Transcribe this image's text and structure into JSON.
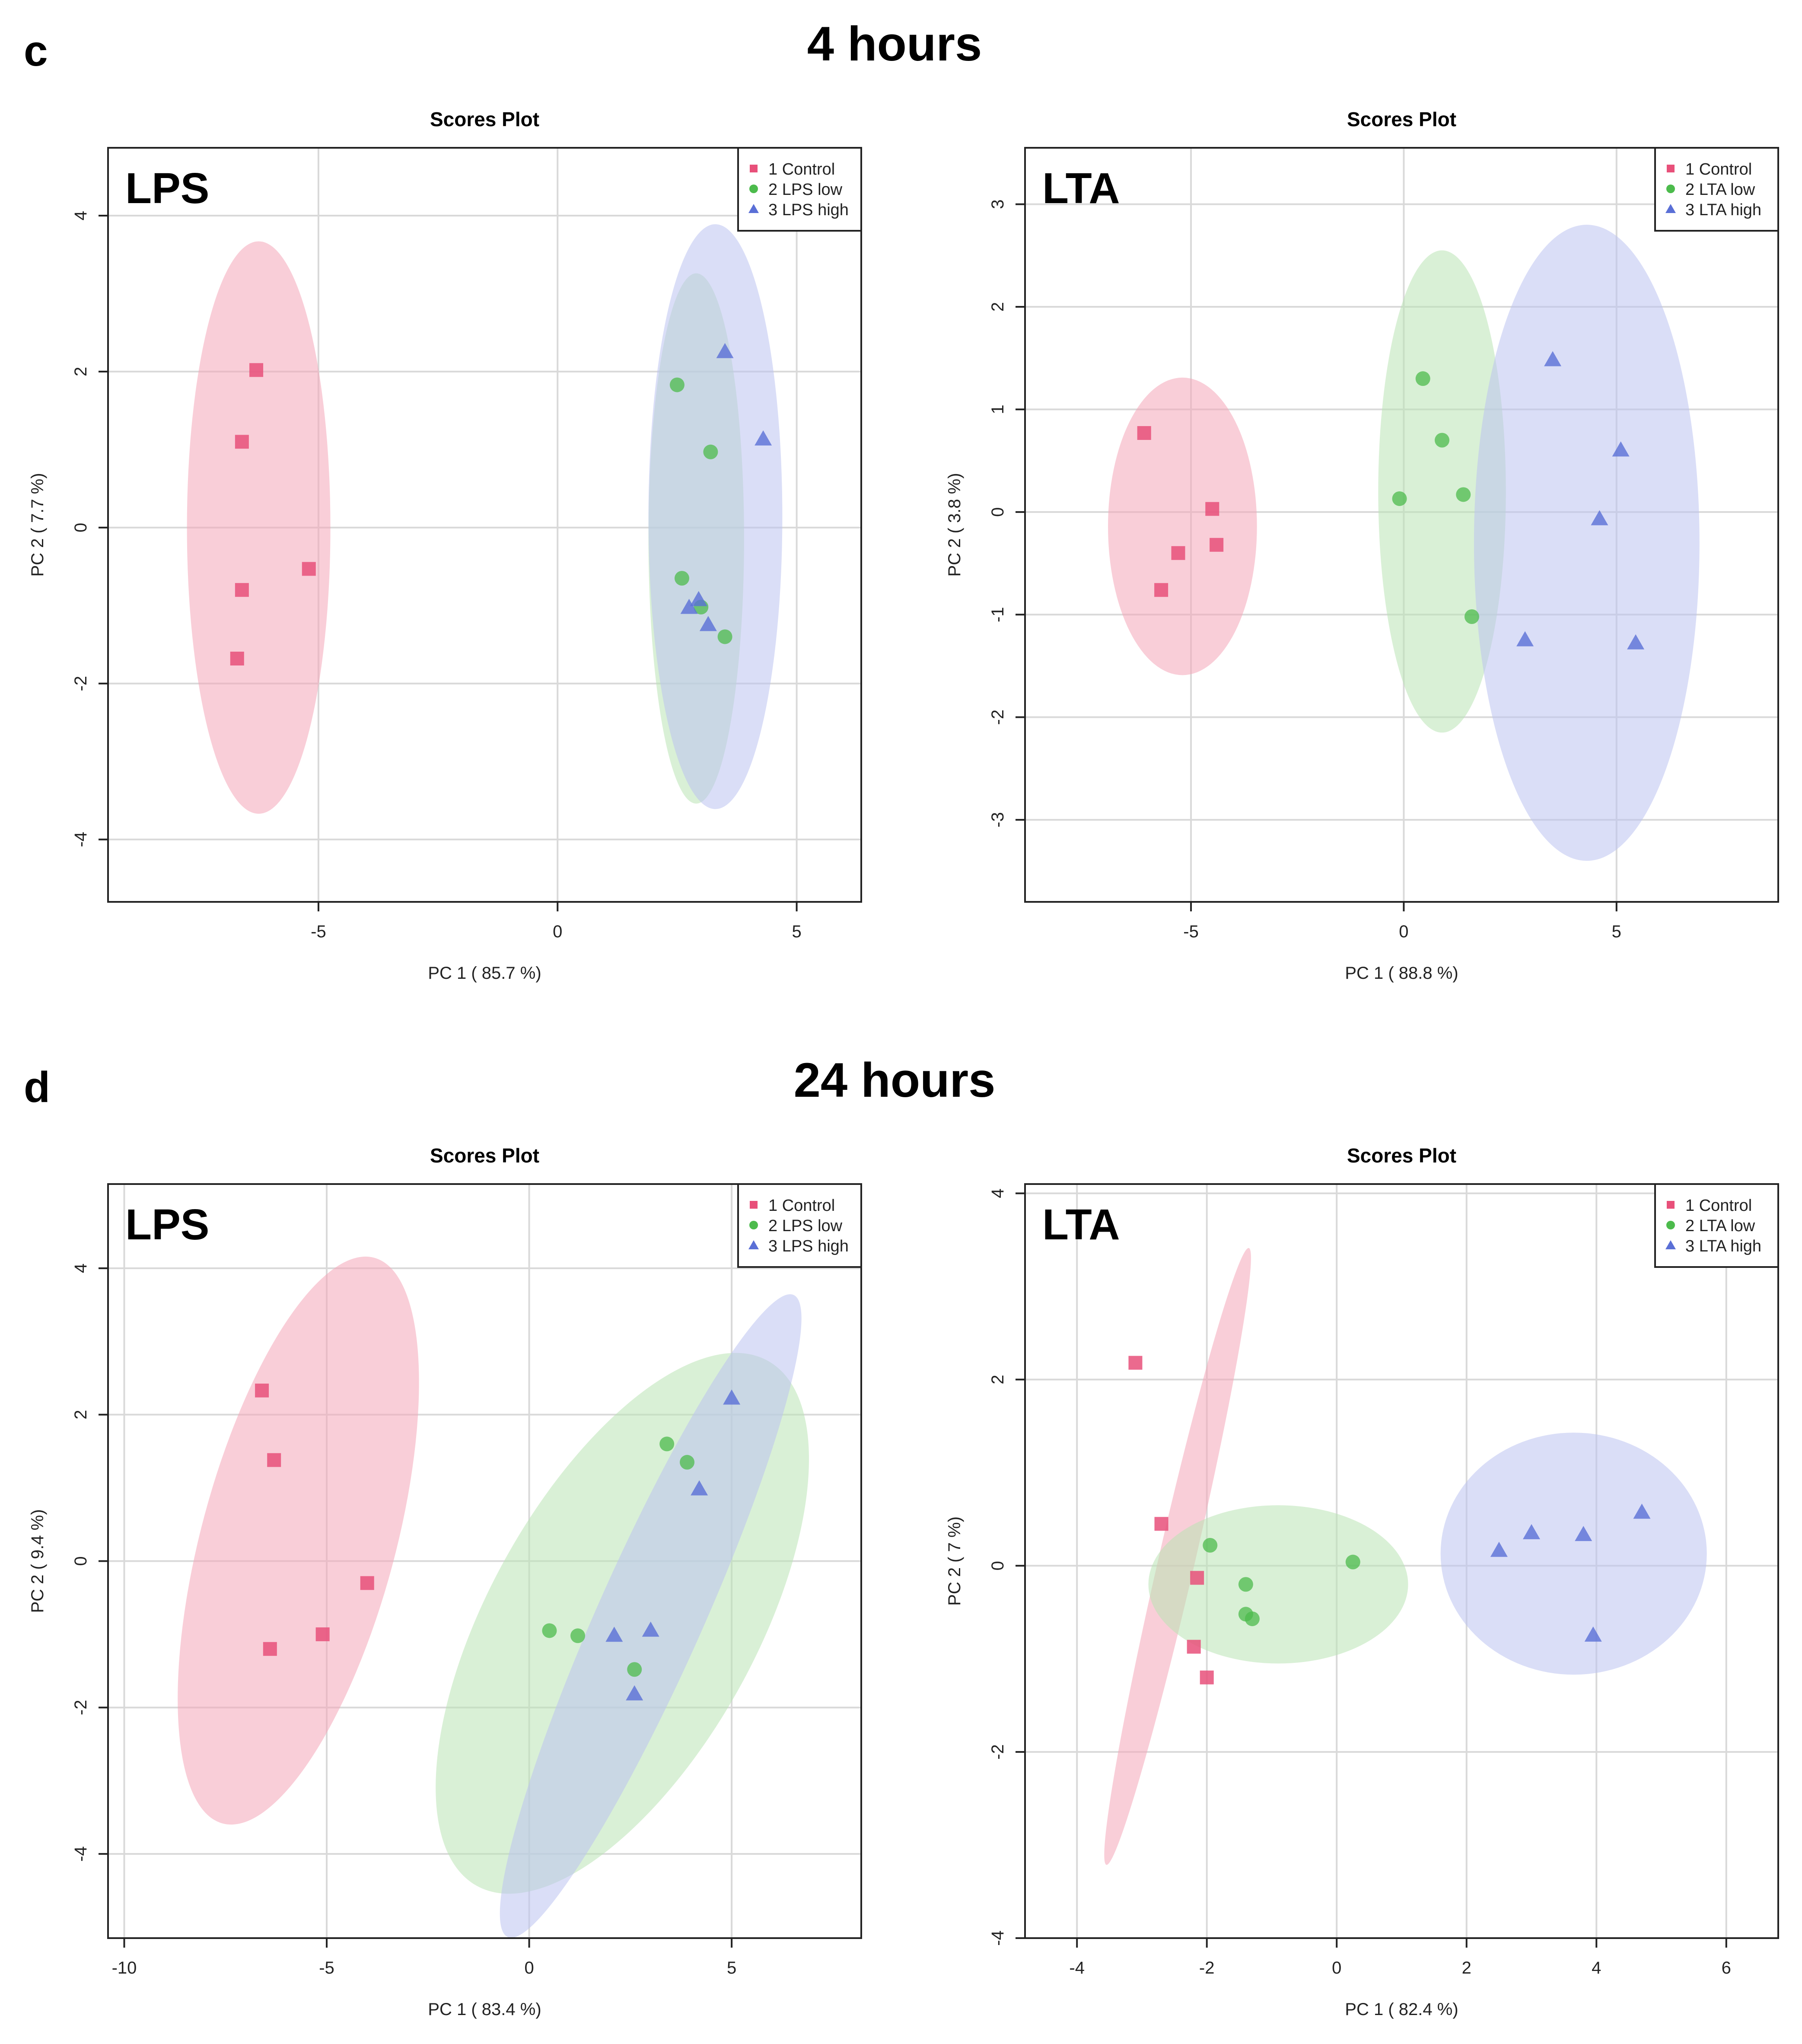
{
  "figure": {
    "sections": [
      {
        "letter": "c",
        "heading": "4 hours"
      },
      {
        "letter": "d",
        "heading": "24 hours"
      }
    ]
  },
  "chart_data": [
    {
      "type": "scatter",
      "section": "4 hours",
      "title": "Scores Plot",
      "inset_label": "LPS",
      "xlabel": "PC 1 ( 85.7 %)",
      "ylabel": "PC 2 ( 7.7 %)",
      "xlim": [
        -9.4,
        6.35
      ],
      "ylim": [
        -4.8,
        4.87
      ],
      "xticks": [
        -5,
        0,
        5
      ],
      "yticks": [
        -4,
        -2,
        0,
        2,
        4
      ],
      "grid": true,
      "legend_position": "top-right",
      "series": [
        {
          "name": "1 Control",
          "marker": "square",
          "color": "#e8507a",
          "fill": "#f4a6b8",
          "points": [
            [
              -6.3,
              2.02
            ],
            [
              -6.6,
              1.1
            ],
            [
              -6.6,
              -0.8
            ],
            [
              -6.7,
              -1.68
            ],
            [
              -5.2,
              -0.53
            ]
          ],
          "ellipse": {
            "cx": -6.25,
            "cy": 0.0,
            "rx": 1.5,
            "ry": 3.67,
            "angle": 0
          }
        },
        {
          "name": "2 LPS low",
          "marker": "circle",
          "color": "#4cbb4c",
          "fill": "#b9e3b4",
          "points": [
            [
              2.5,
              1.83
            ],
            [
              3.2,
              0.97
            ],
            [
              2.6,
              -0.65
            ],
            [
              3.0,
              -1.02
            ],
            [
              3.5,
              -1.4
            ]
          ],
          "ellipse": {
            "cx": 2.9,
            "cy": -0.14,
            "rx": 1.0,
            "ry": 3.4,
            "angle": 0
          }
        },
        {
          "name": "3 LPS high",
          "marker": "triangle",
          "color": "#5a6fd6",
          "fill": "#bcc3f0",
          "points": [
            [
              3.5,
              2.25
            ],
            [
              4.3,
              1.13
            ],
            [
              2.75,
              -1.03
            ],
            [
              2.95,
              -0.93
            ],
            [
              3.15,
              -1.25
            ]
          ],
          "ellipse": {
            "cx": 3.3,
            "cy": 0.14,
            "rx": 1.4,
            "ry": 3.75,
            "angle": 0
          }
        }
      ]
    },
    {
      "type": "scatter",
      "section": "4 hours",
      "title": "Scores Plot",
      "inset_label": "LTA",
      "xlabel": "PC 1 ( 88.8 %)",
      "ylabel": "PC 2 ( 3.8 %)",
      "xlim": [
        -8.9,
        8.8
      ],
      "ylim": [
        -3.8,
        3.55
      ],
      "xticks": [
        -5,
        0,
        5
      ],
      "yticks": [
        -3,
        -2,
        -1,
        0,
        1,
        2,
        3
      ],
      "grid": true,
      "legend_position": "top-right",
      "series": [
        {
          "name": "1 Control",
          "marker": "square",
          "color": "#e8507a",
          "fill": "#f4a6b8",
          "points": [
            [
              -6.1,
              0.77
            ],
            [
              -4.5,
              0.03
            ],
            [
              -5.3,
              -0.4
            ],
            [
              -4.4,
              -0.32
            ],
            [
              -5.7,
              -0.76
            ]
          ],
          "ellipse": {
            "cx": -5.2,
            "cy": -0.14,
            "rx": 1.75,
            "ry": 1.45,
            "angle": 0
          }
        },
        {
          "name": "2 LTA low",
          "marker": "circle",
          "color": "#4cbb4c",
          "fill": "#b9e3b4",
          "points": [
            [
              0.45,
              1.3
            ],
            [
              0.9,
              0.7
            ],
            [
              -0.1,
              0.13
            ],
            [
              1.4,
              0.17
            ],
            [
              1.6,
              -1.02
            ]
          ],
          "ellipse": {
            "cx": 0.9,
            "cy": 0.2,
            "rx": 1.5,
            "ry": 2.35,
            "angle": 0
          }
        },
        {
          "name": "3 LTA high",
          "marker": "triangle",
          "color": "#5a6fd6",
          "fill": "#bcc3f0",
          "points": [
            [
              3.5,
              1.48
            ],
            [
              5.1,
              0.6
            ],
            [
              4.6,
              -0.07
            ],
            [
              2.85,
              -1.25
            ],
            [
              5.45,
              -1.28
            ]
          ],
          "ellipse": {
            "cx": 4.3,
            "cy": -0.3,
            "rx": 2.65,
            "ry": 3.1,
            "angle": 0
          }
        }
      ]
    },
    {
      "type": "scatter",
      "section": "24 hours",
      "title": "Scores Plot",
      "inset_label": "LPS",
      "xlabel": "PC 1 ( 83.4 %)",
      "ylabel": "PC 2 ( 9.4 %)",
      "xlim": [
        -10.4,
        8.2
      ],
      "ylim": [
        -5.15,
        5.15
      ],
      "xticks": [
        -10,
        -5,
        0,
        5
      ],
      "yticks": [
        -4,
        -2,
        0,
        2,
        4
      ],
      "grid": true,
      "legend_position": "top-right",
      "series": [
        {
          "name": "1 Control",
          "marker": "square",
          "color": "#e8507a",
          "fill": "#f4a6b8",
          "points": [
            [
              -6.6,
              2.33
            ],
            [
              -6.3,
              1.38
            ],
            [
              -4.0,
              -0.3
            ],
            [
              -5.1,
              -1.0
            ],
            [
              -6.4,
              -1.2
            ]
          ],
          "ellipse": {
            "cx": -5.7,
            "cy": 0.28,
            "rx": 2.4,
            "ry": 4.0,
            "angle": 15
          }
        },
        {
          "name": "2 LPS low",
          "marker": "circle",
          "color": "#4cbb4c",
          "fill": "#b9e3b4",
          "points": [
            [
              3.4,
              1.6
            ],
            [
              3.9,
              1.35
            ],
            [
              0.5,
              -0.95
            ],
            [
              1.2,
              -1.02
            ],
            [
              2.6,
              -1.48
            ]
          ],
          "ellipse": {
            "cx": 2.3,
            "cy": -0.85,
            "rx": 3.3,
            "ry": 4.1,
            "angle": 29
          }
        },
        {
          "name": "3 LPS high",
          "marker": "triangle",
          "color": "#5a6fd6",
          "fill": "#bcc3f0",
          "points": [
            [
              5.0,
              2.22
            ],
            [
              4.2,
              0.98
            ],
            [
              2.1,
              -1.02
            ],
            [
              3.0,
              -0.95
            ],
            [
              2.6,
              -1.82
            ]
          ],
          "ellipse": {
            "cx": 3.0,
            "cy": -0.75,
            "rx": 1.3,
            "ry": 4.8,
            "angle": 24
          }
        }
      ]
    },
    {
      "type": "scatter",
      "section": "24 hours",
      "title": "Scores Plot",
      "inset_label": "LTA",
      "xlabel": "PC 1 ( 82.4 %)",
      "ylabel": "PC 2 ( 7 %)",
      "xlim": [
        -4.8,
        6.8
      ],
      "ylim": [
        -4.0,
        4.1
      ],
      "xticks": [
        -4,
        -2,
        0,
        2,
        4,
        6
      ],
      "yticks": [
        -4,
        -2,
        0,
        2,
        4
      ],
      "grid": true,
      "legend_position": "top-right",
      "series": [
        {
          "name": "1 Control",
          "marker": "square",
          "color": "#e8507a",
          "fill": "#f4a6b8",
          "points": [
            [
              -3.1,
              2.18
            ],
            [
              -2.7,
              0.45
            ],
            [
              -2.15,
              -0.13
            ],
            [
              -2.2,
              -0.87
            ],
            [
              -2.0,
              -1.2
            ]
          ],
          "ellipse": {
            "cx": -2.45,
            "cy": 0.1,
            "rx": 0.28,
            "ry": 3.4,
            "angle": 13
          }
        },
        {
          "name": "2 LTA low",
          "marker": "circle",
          "color": "#4cbb4c",
          "fill": "#b9e3b4",
          "points": [
            [
              -1.95,
              0.22
            ],
            [
              0.25,
              0.04
            ],
            [
              -1.4,
              -0.2
            ],
            [
              -1.4,
              -0.52
            ],
            [
              -1.3,
              -0.57
            ]
          ],
          "ellipse": {
            "cx": -0.9,
            "cy": -0.2,
            "rx": 2.0,
            "ry": 0.85,
            "angle": 0
          }
        },
        {
          "name": "3 LTA high",
          "marker": "triangle",
          "color": "#5a6fd6",
          "fill": "#bcc3f0",
          "points": [
            [
              3.0,
              0.35
            ],
            [
              3.8,
              0.33
            ],
            [
              4.7,
              0.57
            ],
            [
              2.5,
              0.16
            ],
            [
              3.95,
              -0.75
            ]
          ],
          "ellipse": {
            "cx": 3.65,
            "cy": 0.13,
            "rx": 2.05,
            "ry": 1.3,
            "angle": 0
          }
        }
      ]
    }
  ]
}
